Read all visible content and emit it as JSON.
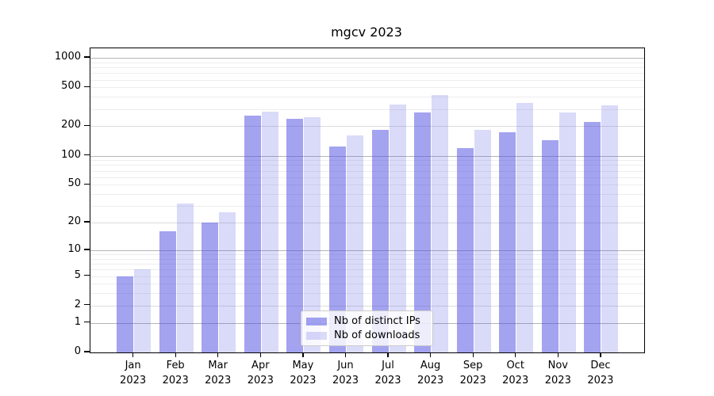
{
  "title": "mgcv 2023",
  "colors": {
    "bar_base": "#4E4EE2",
    "distinct_ips": "rgba(78,78,226,0.52)",
    "downloads": "rgba(78,78,226,0.21)",
    "grid_major": "#b5b5b5",
    "grid_mid": "#dcdcdc",
    "grid_minor": "#ededed",
    "axis": "#000000"
  },
  "legend": {
    "items": [
      {
        "label": "Nb of distinct IPs"
      },
      {
        "label": "Nb of downloads"
      }
    ]
  },
  "chart_data": {
    "type": "bar",
    "title": "mgcv 2023",
    "xlabel": "",
    "ylabel": "",
    "yscale": "log1p",
    "ylim": [
      0,
      1250
    ],
    "yticks": [
      0,
      1,
      2,
      5,
      10,
      20,
      50,
      100,
      200,
      500,
      1000
    ],
    "grid": true,
    "legend_position": "lower center",
    "categories": [
      "Jan 2023",
      "Feb 2023",
      "Mar 2023",
      "Apr 2023",
      "May 2023",
      "Jun 2023",
      "Jul 2023",
      "Aug 2023",
      "Sep 2023",
      "Oct 2023",
      "Nov 2023",
      "Dec 2023"
    ],
    "series": [
      {
        "name": "Nb of distinct IPs",
        "color": "rgba(78,78,226,0.52)",
        "values": [
          5,
          16,
          20,
          255,
          240,
          125,
          185,
          275,
          120,
          173,
          145,
          220
        ]
      },
      {
        "name": "Nb of downloads",
        "color": "rgba(78,78,226,0.21)",
        "values": [
          6,
          32,
          26,
          280,
          250,
          160,
          335,
          420,
          185,
          348,
          275,
          330
        ]
      }
    ]
  }
}
